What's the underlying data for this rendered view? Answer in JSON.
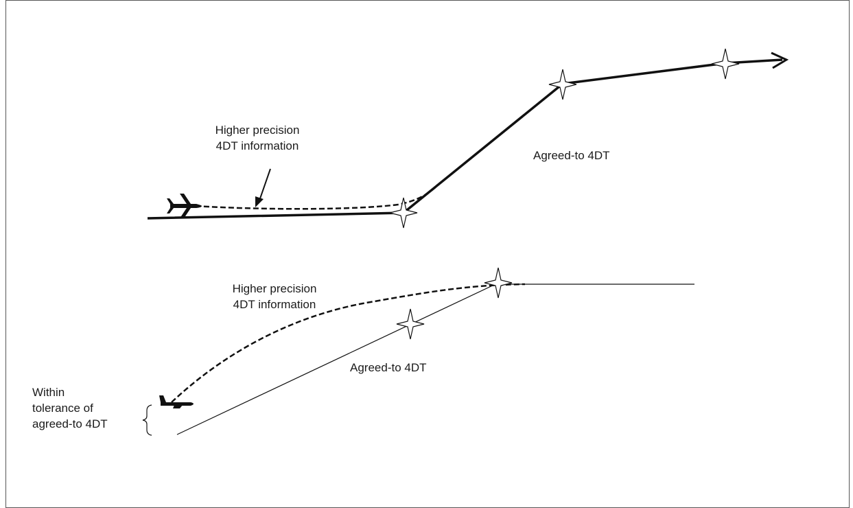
{
  "diagram": {
    "upper": {
      "callout_label_line1": "Higher precision",
      "callout_label_line2": "4DT information",
      "path_label": "Agreed-to 4DT"
    },
    "lower": {
      "callout_label_line1": "Higher precision",
      "callout_label_line2": "4DT information",
      "path_label": "Agreed-to 4DT",
      "tolerance_label_line1": "Within",
      "tolerance_label_line2": "tolerance of",
      "tolerance_label_line3": "agreed-to 4DT"
    },
    "colors": {
      "line": "#111111",
      "waypoint_fill": "#ffffff",
      "frame": "#555555"
    },
    "icons": [
      "aircraft-icon",
      "waypoint-star-icon",
      "arrowhead-icon",
      "brace-icon"
    ]
  }
}
